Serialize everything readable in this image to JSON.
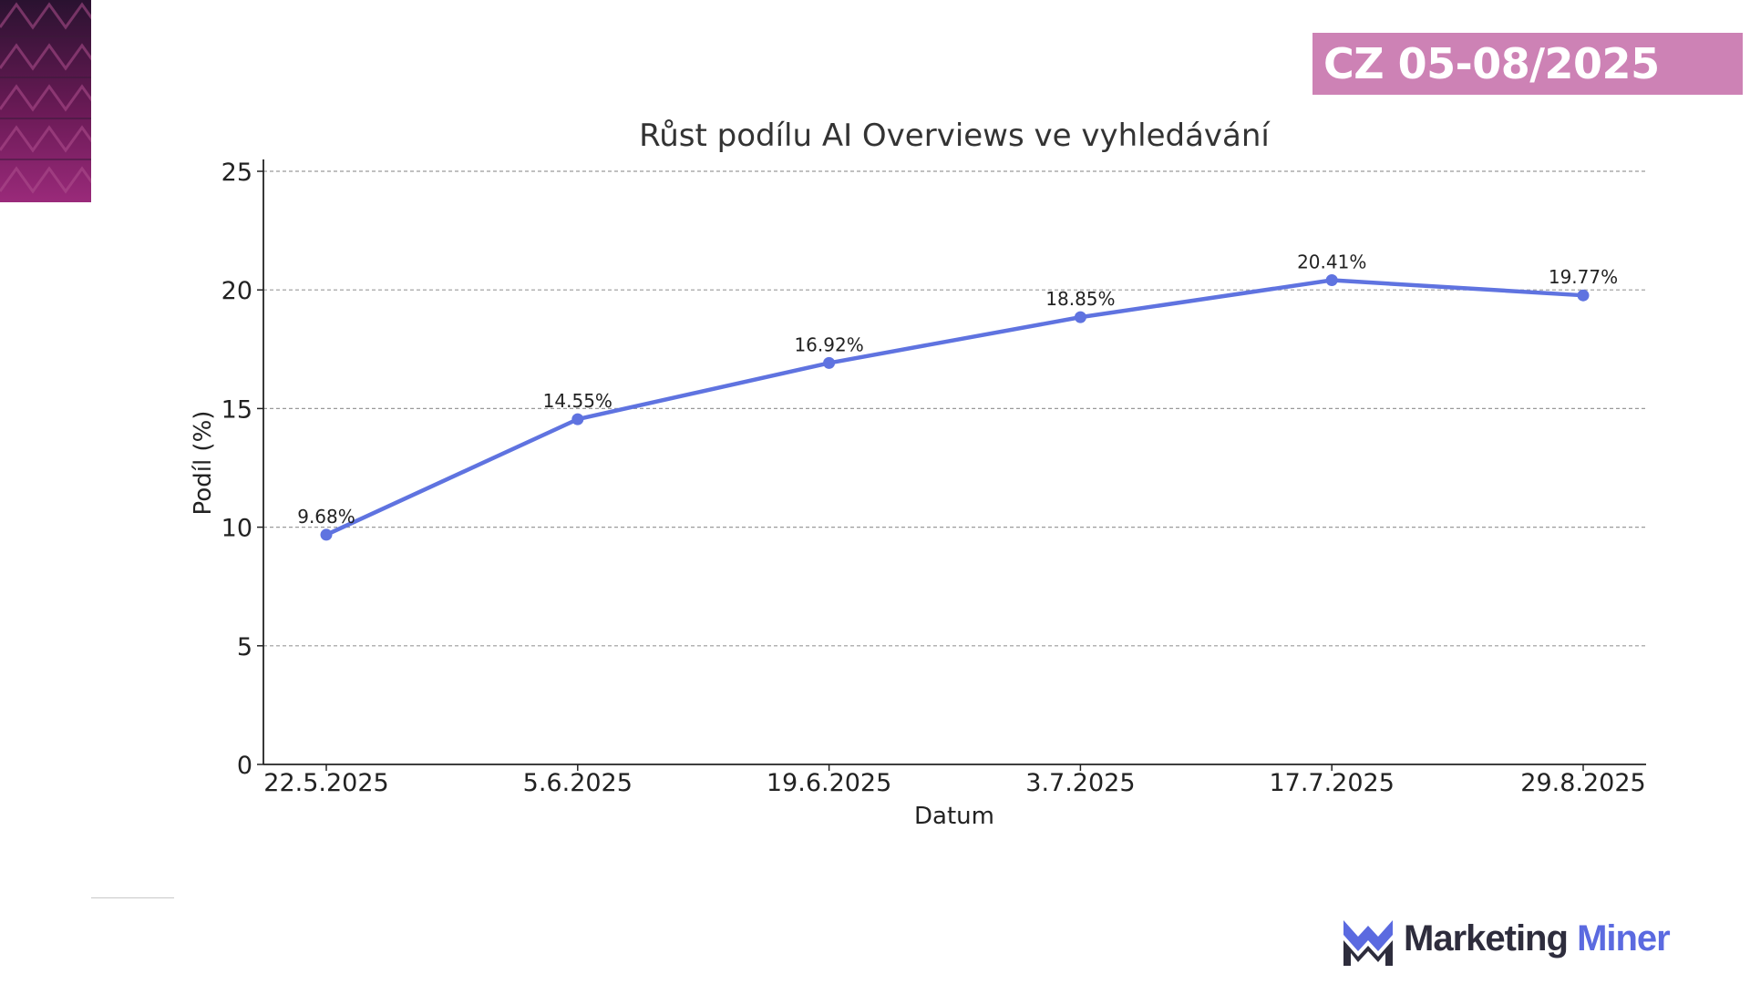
{
  "badge": {
    "text": "CZ 05-08/2025",
    "color": "#cd82b5"
  },
  "logo": {
    "word_a": "Marketing",
    "word_b": "Miner",
    "icon": "marketing-miner-m-icon"
  },
  "chart_data": {
    "type": "line",
    "title": "Růst podílu AI Overviews ve vyhledávání",
    "xlabel": "Datum",
    "ylabel": "Podíl (%)",
    "categories": [
      "22.5.2025",
      "5.6.2025",
      "19.6.2025",
      "3.7.2025",
      "17.7.2025",
      "29.8.2025"
    ],
    "series": [
      {
        "values": [
          9.68,
          14.55,
          16.92,
          18.85,
          20.41,
          19.77
        ],
        "labels": [
          "9.68%",
          "14.55%",
          "16.92%",
          "18.85%",
          "20.41%",
          "19.77%"
        ],
        "color": "#5f73e0"
      }
    ],
    "ylim": [
      0,
      25
    ],
    "yticks": [
      0,
      5,
      10,
      15,
      20,
      25
    ],
    "grid": "horizontal dashed",
    "legend": "none"
  }
}
